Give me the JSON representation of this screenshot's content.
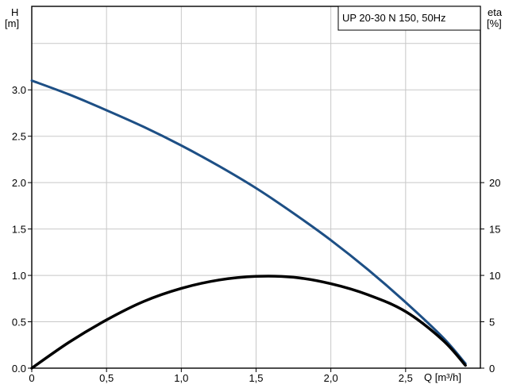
{
  "chart_data": {
    "type": "line",
    "title": "UP 20-30 N 150, 50Hz",
    "y_label_top": "H",
    "y_label_unit": "[m]",
    "y2_label_top": "eta",
    "y2_label_unit": "[%]",
    "xlabel": "Q [m³/h]",
    "grid": true,
    "xlim": [
      0,
      3.0
    ],
    "ylim": [
      0,
      3.9
    ],
    "y2lim": [
      0,
      39
    ],
    "x_ticks": [
      {
        "value": 0,
        "label": "0"
      },
      {
        "value": 0.5,
        "label": "0,5"
      },
      {
        "value": 1.0,
        "label": "1,0"
      },
      {
        "value": 1.5,
        "label": "1,5"
      },
      {
        "value": 2.0,
        "label": "2,0"
      },
      {
        "value": 2.5,
        "label": "2,5"
      }
    ],
    "y_ticks": [
      {
        "value": 0.0,
        "label": "0.0"
      },
      {
        "value": 0.5,
        "label": "0.5"
      },
      {
        "value": 1.0,
        "label": "1.0"
      },
      {
        "value": 1.5,
        "label": "1.5"
      },
      {
        "value": 2.0,
        "label": "2.0"
      },
      {
        "value": 2.5,
        "label": "2.5"
      },
      {
        "value": 3.0,
        "label": "3.0"
      }
    ],
    "y2_ticks": [
      {
        "value": 0,
        "label": "0"
      },
      {
        "value": 5,
        "label": "5"
      },
      {
        "value": 10,
        "label": "10"
      },
      {
        "value": 15,
        "label": "15"
      },
      {
        "value": 20,
        "label": "20"
      }
    ],
    "series": [
      {
        "axis": "left",
        "color": "#1d4f85",
        "x": [
          0,
          0.25,
          0.5,
          0.75,
          1.0,
          1.25,
          1.5,
          1.75,
          2.0,
          2.25,
          2.5,
          2.75,
          2.9
        ],
        "y": [
          3.1,
          2.95,
          2.78,
          2.6,
          2.4,
          2.18,
          1.94,
          1.67,
          1.38,
          1.06,
          0.71,
          0.33,
          0.05
        ]
      },
      {
        "axis": "right",
        "color": "#000000",
        "x": [
          0,
          0.25,
          0.5,
          0.75,
          1.0,
          1.25,
          1.5,
          1.75,
          2.0,
          2.25,
          2.5,
          2.75,
          2.9
        ],
        "y": [
          0,
          2.8,
          5.2,
          7.2,
          8.6,
          9.5,
          9.9,
          9.8,
          9.1,
          7.9,
          6.1,
          3.0,
          0.3
        ]
      }
    ]
  }
}
